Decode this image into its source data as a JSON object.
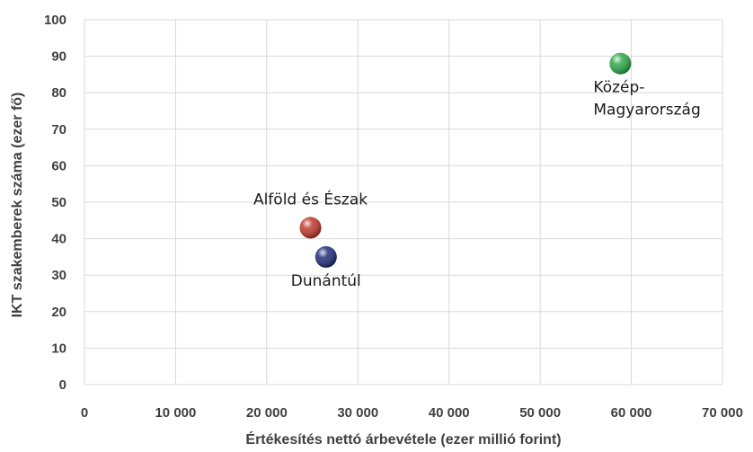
{
  "chart_data": {
    "type": "scatter",
    "xlabel": "Értékesítés nettó árbevétele (ezer millió forint)",
    "ylabel": "IKT szakemberek száma (ezer fő)",
    "xlim": [
      0,
      70000
    ],
    "ylim": [
      0,
      100
    ],
    "x_ticks": [
      0,
      10000,
      20000,
      30000,
      40000,
      50000,
      60000,
      70000
    ],
    "x_tick_labels": [
      "0",
      "10 000",
      "20 000",
      "30 000",
      "40 000",
      "50 000",
      "60 000",
      "70 000"
    ],
    "y_ticks": [
      0,
      10,
      20,
      30,
      40,
      50,
      60,
      70,
      80,
      90,
      100
    ],
    "y_tick_labels": [
      "0",
      "10",
      "20",
      "30",
      "40",
      "50",
      "60",
      "70",
      "80",
      "90",
      "100"
    ],
    "grid": true,
    "points": [
      {
        "label_lines": [
          "Alföld és Észak"
        ],
        "x": 24800,
        "y": 43,
        "color": "#c0392b",
        "label_position": "above"
      },
      {
        "label_lines": [
          "Dunántúl"
        ],
        "x": 26500,
        "y": 35,
        "color": "#1f2f7a",
        "label_position": "below"
      },
      {
        "label_lines": [
          "Közép-",
          "Magyarország"
        ],
        "x": 58800,
        "y": 88,
        "color": "#2eaa4a",
        "label_position": "below"
      }
    ]
  }
}
